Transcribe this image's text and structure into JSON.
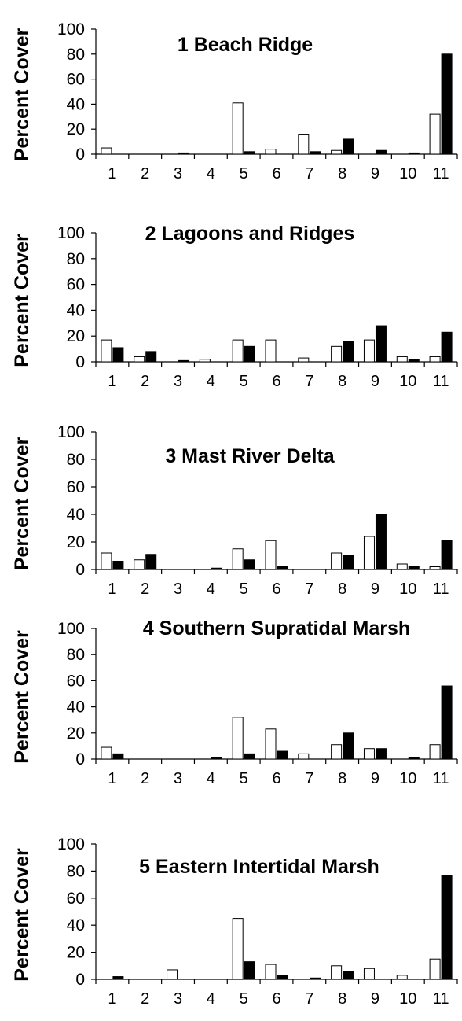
{
  "chart_data": [
    {
      "type": "bar",
      "title": "1  Beach Ridge",
      "ylabel": "Percent Cover",
      "xlabel": "",
      "categories": [
        "1",
        "2",
        "3",
        "4",
        "5",
        "6",
        "7",
        "8",
        "9",
        "10",
        "11"
      ],
      "ylim": [
        0,
        100
      ],
      "yticks": [
        "0",
        "20",
        "40",
        "60",
        "80",
        "100"
      ],
      "grid": false,
      "series": [
        {
          "fill": "#ffffff",
          "values": [
            5,
            0,
            0,
            0,
            41,
            4,
            16,
            3,
            0,
            0,
            32
          ]
        },
        {
          "fill": "#000000",
          "values": [
            0,
            0,
            1,
            0,
            2,
            0,
            2,
            12,
            3,
            1,
            80
          ]
        }
      ]
    },
    {
      "type": "bar",
      "title": "2  Lagoons and Ridges",
      "ylabel": "Percent Cover",
      "xlabel": "",
      "categories": [
        "1",
        "2",
        "3",
        "4",
        "5",
        "6",
        "7",
        "8",
        "9",
        "10",
        "11"
      ],
      "ylim": [
        0,
        100
      ],
      "yticks": [
        "0",
        "20",
        "40",
        "60",
        "80",
        "100"
      ],
      "grid": false,
      "series": [
        {
          "fill": "#ffffff",
          "values": [
            17,
            4,
            0,
            2,
            17,
            17,
            3,
            12,
            17,
            4,
            4
          ]
        },
        {
          "fill": "#000000",
          "values": [
            11,
            8,
            1,
            0,
            12,
            0,
            0,
            16,
            28,
            2,
            23
          ]
        }
      ]
    },
    {
      "type": "bar",
      "title": "3  Mast River Delta",
      "ylabel": "Percent Cover",
      "xlabel": "",
      "categories": [
        "1",
        "2",
        "3",
        "4",
        "5",
        "6",
        "7",
        "8",
        "9",
        "10",
        "11"
      ],
      "ylim": [
        0,
        100
      ],
      "yticks": [
        "0",
        "20",
        "40",
        "60",
        "80",
        "100"
      ],
      "grid": false,
      "series": [
        {
          "fill": "#ffffff",
          "values": [
            12,
            7,
            0,
            0,
            15,
            21,
            0,
            12,
            24,
            4,
            2
          ]
        },
        {
          "fill": "#000000",
          "values": [
            6,
            11,
            0,
            1,
            7,
            2,
            0,
            10,
            40,
            2,
            21
          ]
        }
      ]
    },
    {
      "type": "bar",
      "title": "4  Southern Supratidal Marsh",
      "ylabel": "Percent Cover",
      "xlabel": "",
      "categories": [
        "1",
        "2",
        "3",
        "4",
        "5",
        "6",
        "7",
        "8",
        "9",
        "10",
        "11"
      ],
      "ylim": [
        0,
        100
      ],
      "yticks": [
        "0",
        "20",
        "40",
        "60",
        "80",
        "100"
      ],
      "grid": false,
      "series": [
        {
          "fill": "#ffffff",
          "values": [
            9,
            0,
            0,
            0,
            32,
            23,
            4,
            11,
            8,
            0,
            11
          ]
        },
        {
          "fill": "#000000",
          "values": [
            4,
            0,
            0,
            1,
            4,
            6,
            0,
            20,
            8,
            1,
            56
          ]
        }
      ]
    },
    {
      "type": "bar",
      "title": "5  Eastern Intertidal Marsh",
      "ylabel": "Percent Cover",
      "xlabel": "",
      "categories": [
        "1",
        "2",
        "3",
        "4",
        "5",
        "6",
        "7",
        "8",
        "9",
        "10",
        "11"
      ],
      "ylim": [
        0,
        100
      ],
      "yticks": [
        "0",
        "20",
        "40",
        "60",
        "80",
        "100"
      ],
      "grid": false,
      "series": [
        {
          "fill": "#ffffff",
          "values": [
            0,
            0,
            7,
            0,
            45,
            11,
            0,
            10,
            8,
            3,
            15
          ]
        },
        {
          "fill": "#000000",
          "values": [
            2,
            0,
            0,
            0,
            13,
            3,
            1,
            6,
            0,
            0,
            77
          ]
        }
      ]
    }
  ]
}
